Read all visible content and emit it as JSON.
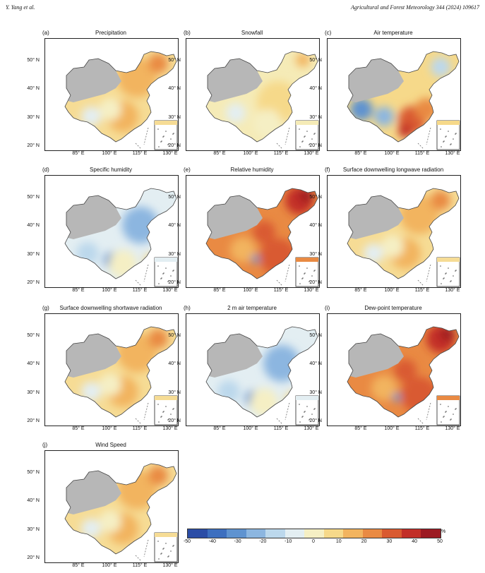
{
  "header": {
    "left": "Y. Yang et al.",
    "right": "Agricultural and Forest Meteorology 344 (2024) 109617"
  },
  "axes": {
    "lat_labels": [
      "50° N",
      "40° N",
      "30° N",
      "20° N"
    ],
    "lon_labels": [
      "85° E",
      "100° E",
      "115° E",
      "130° E"
    ]
  },
  "panels": [
    {
      "letter": "(a)",
      "title": "Precipitation",
      "scheme": "warm"
    },
    {
      "letter": "(b)",
      "title": "Snowfall",
      "scheme": "yellow"
    },
    {
      "letter": "(c)",
      "title": "Air temperature",
      "scheme": "mixed"
    },
    {
      "letter": "(d)",
      "title": "Specific humidity",
      "scheme": "cool"
    },
    {
      "letter": "(e)",
      "title": "Relative humidity",
      "scheme": "hot"
    },
    {
      "letter": "(f)",
      "title": "Surface downwelling longwave radiation",
      "scheme": "warm"
    },
    {
      "letter": "(g)",
      "title": "Surface downwelling shortwave radiation",
      "scheme": "warm"
    },
    {
      "letter": "(h)",
      "title": "2 m air temperature",
      "scheme": "cool"
    },
    {
      "letter": "(i)",
      "title": "Dew-point temperature",
      "scheme": "hot"
    },
    {
      "letter": "(j)",
      "title": "Wind Speed",
      "scheme": "warm"
    }
  ],
  "colorbar": {
    "ticks": [
      "-50",
      "-40",
      "-30",
      "-20",
      "-10",
      "0",
      "10",
      "20",
      "30",
      "40",
      "50"
    ],
    "unit": "%",
    "colors": [
      "#2b4da6",
      "#3d6fbf",
      "#5f93d0",
      "#8cb6e0",
      "#bcd8ec",
      "#e3eef2",
      "#f5efc4",
      "#f6d98a",
      "#f2b45f",
      "#e98a43",
      "#d95a30",
      "#c22f28",
      "#9c1a22"
    ]
  },
  "land_gray": "#b7b7b7"
}
